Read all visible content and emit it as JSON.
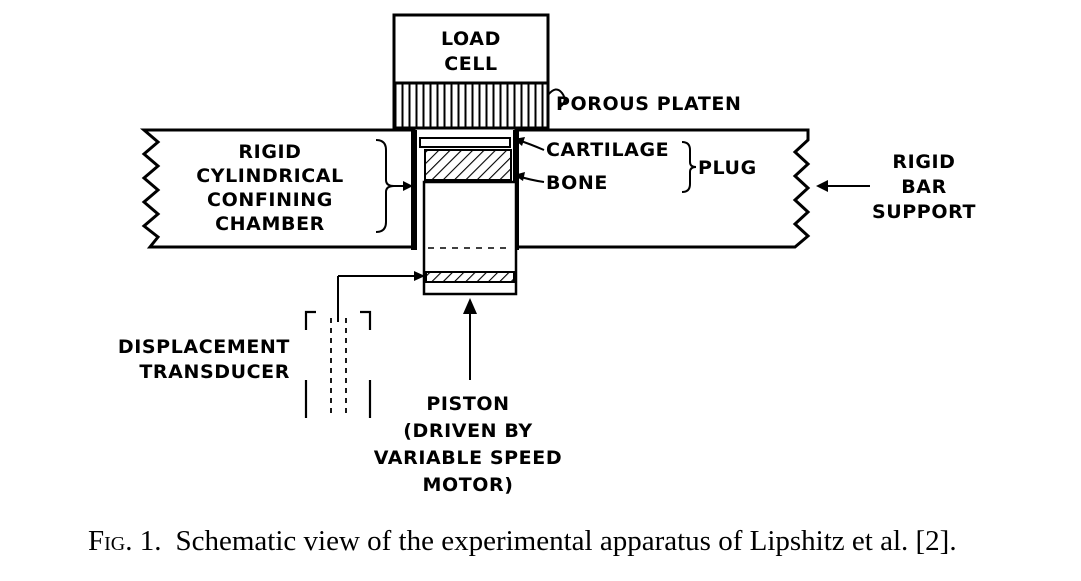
{
  "labels": {
    "load_cell_line1": "LOAD",
    "load_cell_line2": "CELL",
    "porous_platen": "POROUS PLATEN",
    "chamber_line1": "RIGID",
    "chamber_line2": "CYLINDRICAL",
    "chamber_line3": "CONFINING",
    "chamber_line4": "CHAMBER",
    "cartilage": "CARTILAGE",
    "bone": "BONE",
    "plug": "PLUG",
    "support_line1": "RIGID",
    "support_line2": "BAR",
    "support_line3": "SUPPORT",
    "transducer_line1": "DISPLACEMENT",
    "transducer_line2": "TRANSDUCER",
    "piston_line1": "PISTON",
    "piston_line2": "(DRIVEN BY",
    "piston_line3": "VARIABLE SPEED",
    "piston_line4": "MOTOR)"
  },
  "caption": {
    "figure_number": "Fig. 1.",
    "text": "Schematic view of the experimental apparatus of Lipshitz et al. [2]."
  },
  "colors": {
    "ink": "#000000",
    "paper": "#ffffff"
  }
}
